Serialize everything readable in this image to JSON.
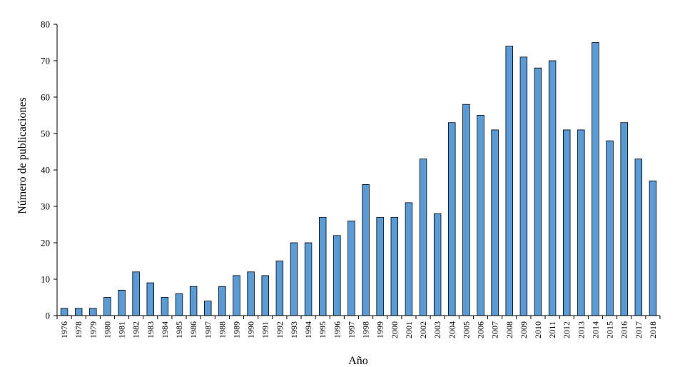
{
  "chart_data": {
    "type": "bar",
    "title": "",
    "xlabel": "Año",
    "ylabel": "Número de publicaciones",
    "ylim": [
      0,
      80
    ],
    "yticks": [
      0,
      10,
      20,
      30,
      40,
      50,
      60,
      70,
      80
    ],
    "grid": false,
    "legend": "none",
    "bar_color": "#5b9bd5",
    "categories": [
      "1976",
      "1978",
      "1979",
      "1980",
      "1981",
      "1982",
      "1983",
      "1984",
      "1985",
      "1986",
      "1987",
      "1988",
      "1989",
      "1990",
      "1991",
      "1992",
      "1993",
      "1994",
      "1995",
      "1996",
      "1997",
      "1998",
      "1999",
      "2000",
      "2001",
      "2002",
      "2003",
      "2004",
      "2005",
      "2006",
      "2007",
      "2008",
      "2009",
      "2010",
      "2011",
      "2012",
      "2013",
      "2014",
      "2015",
      "2016",
      "2017",
      "2018"
    ],
    "values": [
      2,
      2,
      2,
      5,
      7,
      12,
      9,
      5,
      6,
      8,
      4,
      8,
      11,
      12,
      11,
      15,
      20,
      20,
      27,
      22,
      26,
      36,
      27,
      27,
      31,
      43,
      28,
      53,
      58,
      55,
      51,
      74,
      71,
      68,
      70,
      51,
      51,
      75,
      48,
      53,
      43,
      37
    ]
  }
}
